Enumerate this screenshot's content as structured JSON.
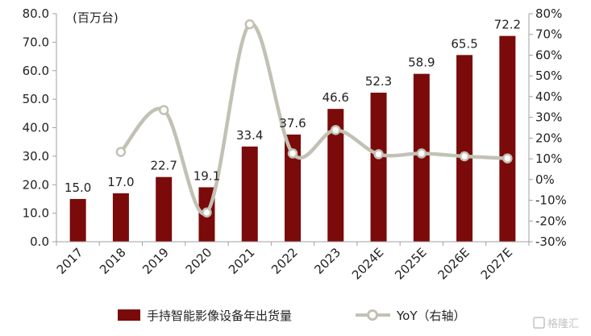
{
  "chart_data": {
    "type": "bar",
    "unit_label": "(百万台)",
    "categories": [
      "2017",
      "2018",
      "2019",
      "2020",
      "2021",
      "2022",
      "2023",
      "2024E",
      "2025E",
      "2026E",
      "2027E"
    ],
    "series": [
      {
        "name": "手持智能影像设备年出货量",
        "type": "bar",
        "axis": "left",
        "color": "#7b0a0a",
        "values": [
          15.0,
          17.0,
          22.7,
          19.1,
          33.4,
          37.6,
          46.6,
          52.3,
          58.9,
          65.5,
          72.2
        ]
      },
      {
        "name": "YoY（右轴）",
        "type": "line",
        "axis": "right",
        "color": "#c2c1b4",
        "smooth": true,
        "values": [
          null,
          13.3,
          33.5,
          -15.9,
          74.9,
          12.6,
          23.9,
          12.2,
          12.6,
          11.2,
          10.2
        ]
      }
    ],
    "data_labels": [
      "15.0",
      "17.0",
      "22.7",
      "19.1",
      "33.4",
      "37.6",
      "46.6",
      "52.3",
      "58.9",
      "65.5",
      "72.2"
    ],
    "y_left": {
      "min": 0,
      "max": 80,
      "step": 10,
      "tick_labels": [
        "0.0",
        "10.0",
        "20.0",
        "30.0",
        "40.0",
        "50.0",
        "60.0",
        "70.0",
        "80.0"
      ]
    },
    "y_right": {
      "min": -30,
      "max": 80,
      "step": 10,
      "tick_labels": [
        "-30%",
        "-20%",
        "-10%",
        "0%",
        "10%",
        "20%",
        "30%",
        "40%",
        "50%",
        "60%",
        "70%",
        "80%"
      ]
    },
    "grid": false,
    "legend_position": "bottom"
  },
  "watermark": "格隆汇"
}
